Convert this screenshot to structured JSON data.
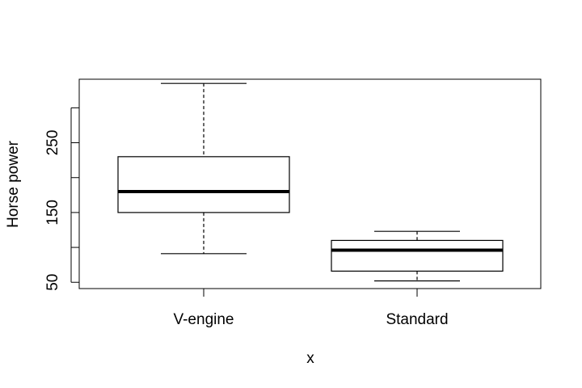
{
  "chart_data": {
    "type": "boxplot",
    "title": "",
    "xlabel": "x",
    "ylabel": "Horse power",
    "categories": [
      "V-engine",
      "Standard"
    ],
    "ylim": [
      41,
      341
    ],
    "yticks": [
      50,
      100,
      150,
      200,
      250,
      300
    ],
    "ytick_labels": [
      "50",
      "",
      "150",
      "",
      "250",
      ""
    ],
    "boxes": [
      {
        "category": "V-engine",
        "min": 91,
        "q1": 150,
        "median": 180,
        "q3": 230,
        "max": 335
      },
      {
        "category": "Standard",
        "min": 52,
        "q1": 66,
        "median": 96,
        "q3": 110,
        "max": 123
      }
    ],
    "grid": false,
    "legend": "none"
  }
}
